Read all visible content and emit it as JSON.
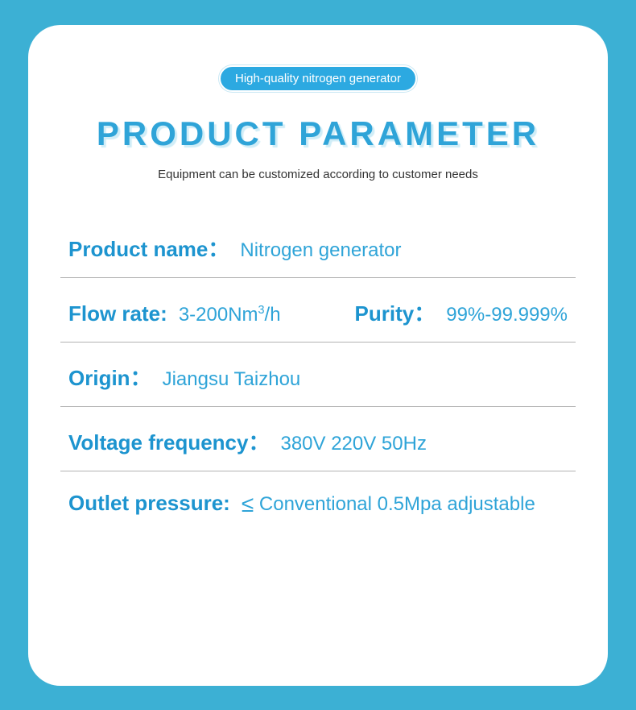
{
  "badge": "High-quality nitrogen generator",
  "title": "PRODUCT PARAMETER",
  "subtitle": "Equipment can be customized according to customer needs",
  "colors": {
    "page_bg": "#3cb0d4",
    "card_bg": "#ffffff",
    "badge_bg": "#2ca9e1",
    "label_color": "#1d94cf",
    "value_color": "#2fa4d8",
    "title_shadow": "#d0edf7",
    "divider": "#b3b3b3",
    "subtitle_color": "#333333"
  },
  "rows": [
    {
      "label": "Product name",
      "colon": "：",
      "value": "Nitrogen generator"
    },
    {
      "left": {
        "label": "Flow rate",
        "colon": ": ",
        "value_html": "3-200Nm³/h"
      },
      "right": {
        "label": "Purity",
        "colon": "：",
        "value": "99%-99.999%"
      }
    },
    {
      "label": "Origin",
      "colon": "：",
      "value": "Jiangsu Taizhou"
    },
    {
      "label": "Voltage frequency",
      "colon": "：",
      "value": "380V 220V 50Hz"
    },
    {
      "label": "Outlet pressure",
      "colon": ": ",
      "value_html": "≤ Conventional 0.5Mpa adjustable"
    }
  ]
}
